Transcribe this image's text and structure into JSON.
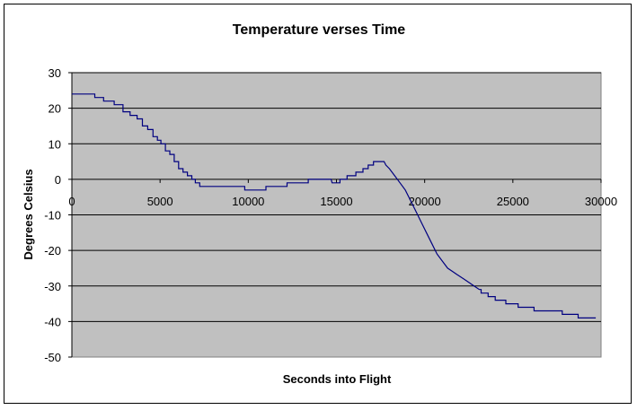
{
  "chart_data": {
    "type": "line",
    "title": "Temperature verses Time",
    "xlabel": "Seconds into Flight",
    "ylabel": "Degrees Celsius",
    "xlim": [
      0,
      30000
    ],
    "ylim": [
      -50,
      30
    ],
    "xticks": [
      0,
      5000,
      10000,
      15000,
      20000,
      25000,
      30000
    ],
    "xtick_labels": [
      "0",
      "5000",
      "10000",
      "15000",
      "20000",
      "25000",
      "30000"
    ],
    "yticks": [
      30,
      20,
      10,
      0,
      -10,
      -20,
      -30,
      -40,
      -50
    ],
    "ytick_labels": [
      "30",
      "20",
      "10",
      "0",
      "-10",
      "-20",
      "-30",
      "-40",
      "-50"
    ],
    "grid": "horizontal",
    "plot_background": "#C0C0C0",
    "line_color": "#000080",
    "series": [
      {
        "x": [
          0,
          1300,
          1300,
          1800,
          1800,
          2400,
          2400,
          2900,
          2900,
          3300,
          3300,
          3700,
          3700,
          4000,
          4000,
          4300,
          4300,
          4600,
          4600,
          4850,
          4850,
          5050,
          5050,
          5300,
          5300,
          5550,
          5550,
          5800,
          5800,
          6050,
          6050,
          6300,
          6300,
          6550,
          6550,
          6800,
          6800,
          7000,
          7000,
          7250,
          7250,
          7700,
          7700,
          8300,
          8300,
          9000,
          9000,
          9800,
          9800,
          11000,
          11000,
          12200,
          12200,
          13400,
          13400,
          14700,
          14750,
          15200,
          15200,
          15600,
          15600,
          16100,
          16100,
          16500,
          16500,
          16800,
          16800,
          17100,
          17100,
          17700,
          17800,
          18000,
          18300,
          18600,
          18900,
          19200,
          19500,
          19800,
          20100,
          20400,
          20700,
          21000,
          21300,
          21600,
          21900,
          22200,
          22500,
          22800,
          23100,
          23200,
          23200,
          23600,
          23600,
          24000,
          24000,
          24600,
          24600,
          25300,
          25300,
          26200,
          26200,
          27000,
          27000,
          27800,
          27800,
          28700,
          28700,
          29700,
          29700
        ],
        "y": [
          24,
          24,
          23,
          23,
          22,
          22,
          21,
          21,
          19,
          19,
          18,
          18,
          17,
          17,
          15,
          15,
          14,
          14,
          12,
          12,
          11,
          11,
          10,
          10,
          8,
          8,
          7,
          7,
          5,
          5,
          3,
          3,
          2,
          2,
          1,
          1,
          0,
          0,
          -1,
          -1,
          -2,
          -2,
          -2,
          -2,
          -2,
          -2,
          -2,
          -2,
          -3,
          -3,
          -2,
          -2,
          -1,
          -1,
          0,
          0,
          -1,
          -1,
          0,
          0,
          1,
          1,
          2,
          2,
          3,
          3,
          4,
          4,
          5,
          5,
          4,
          3,
          1,
          -1,
          -3,
          -6,
          -9,
          -12,
          -15,
          -18,
          -21,
          -23,
          -25,
          -26,
          -27,
          -28,
          -29,
          -30,
          -31,
          -31,
          -32,
          -32,
          -33,
          -33,
          -34,
          -34,
          -35,
          -35,
          -36,
          -36,
          -37,
          -37,
          -37,
          -37,
          -38,
          -38,
          -39,
          -39,
          -39
        ]
      }
    ]
  }
}
